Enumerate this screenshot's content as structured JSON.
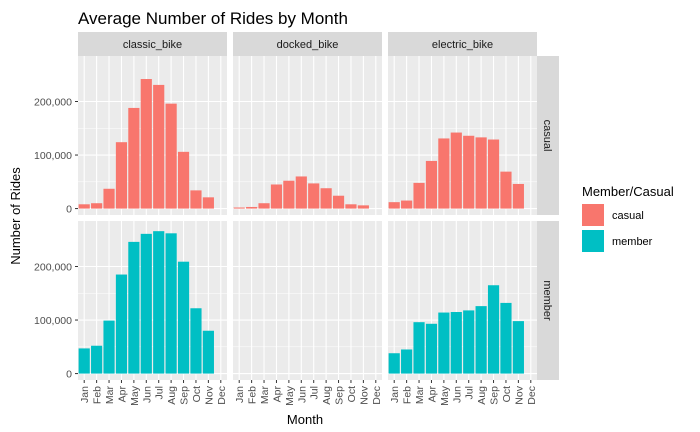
{
  "chart_data": {
    "type": "bar",
    "title": "Average Number of Rides by Month",
    "xlabel": "Month",
    "ylabel": "Number of Rides",
    "categories": [
      "Jan",
      "Feb",
      "Mar",
      "Apr",
      "May",
      "Jun",
      "Jul",
      "Aug",
      "Sep",
      "Oct",
      "Nov",
      "Dec"
    ],
    "ylim": [
      -12000,
      285000
    ],
    "yticks": [
      0,
      100000,
      200000
    ],
    "ytick_labels": [
      "0",
      "100,000",
      "200,000"
    ],
    "columns": [
      "classic_bike",
      "docked_bike",
      "electric_bike"
    ],
    "rows": [
      "casual",
      "member"
    ],
    "grid": true,
    "legend": {
      "title": "Member/Casual",
      "position": "right",
      "entries": [
        {
          "name": "casual",
          "color": "#F8766D"
        },
        {
          "name": "member",
          "color": "#00BFC4"
        }
      ]
    },
    "panels": [
      {
        "row": "casual",
        "column": "classic_bike",
        "values": [
          8000,
          10000,
          37000,
          124000,
          188000,
          242000,
          231000,
          196000,
          106000,
          34000,
          21000,
          0
        ]
      },
      {
        "row": "casual",
        "column": "docked_bike",
        "values": [
          2000,
          3000,
          10000,
          45000,
          52000,
          60000,
          47000,
          38000,
          24000,
          8000,
          6000,
          0
        ]
      },
      {
        "row": "casual",
        "column": "electric_bike",
        "values": [
          12000,
          15000,
          48000,
          89000,
          131000,
          142000,
          136000,
          133000,
          129000,
          69000,
          46000,
          0
        ]
      },
      {
        "row": "member",
        "column": "classic_bike",
        "values": [
          47000,
          52000,
          99000,
          185000,
          246000,
          261000,
          266000,
          262000,
          209000,
          122000,
          80000,
          0
        ]
      },
      {
        "row": "member",
        "column": "docked_bike",
        "values": [
          0,
          0,
          0,
          0,
          0,
          0,
          0,
          0,
          0,
          0,
          0,
          0
        ]
      },
      {
        "row": "member",
        "column": "electric_bike",
        "values": [
          38000,
          45000,
          96000,
          93000,
          114000,
          115000,
          118000,
          126000,
          165000,
          132000,
          98000,
          0
        ]
      }
    ]
  }
}
